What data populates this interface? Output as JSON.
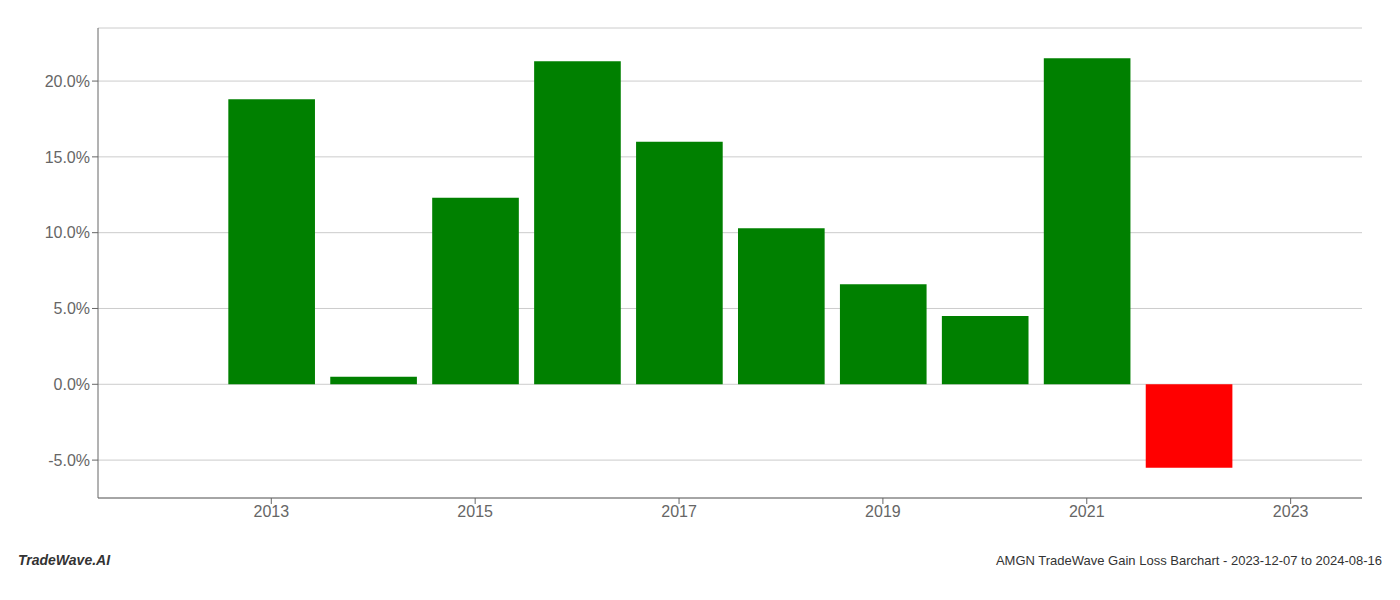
{
  "chart_data": {
    "type": "bar",
    "x": [
      2013,
      2014,
      2015,
      2016,
      2017,
      2018,
      2019,
      2020,
      2021,
      2022
    ],
    "values": [
      0.188,
      0.005,
      0.123,
      0.213,
      0.16,
      0.103,
      0.066,
      0.045,
      0.215,
      -0.055
    ],
    "colors": [
      "#008000",
      "#008000",
      "#008000",
      "#008000",
      "#008000",
      "#008000",
      "#008000",
      "#008000",
      "#008000",
      "#ff0000"
    ],
    "xlim": [
      2011.3,
      2023.7
    ],
    "ylim": [
      -0.075,
      0.235
    ],
    "xticks": [
      2013,
      2015,
      2017,
      2019,
      2021,
      2023
    ],
    "yticks": [
      {
        "value": -0.05,
        "label": "-5.0%"
      },
      {
        "value": 0.0,
        "label": "0.0%"
      },
      {
        "value": 0.05,
        "label": "5.0%"
      },
      {
        "value": 0.1,
        "label": "10.0%"
      },
      {
        "value": 0.15,
        "label": "15.0%"
      },
      {
        "value": 0.2,
        "label": "20.0%"
      }
    ],
    "grid": true,
    "annotations": [
      "TradeWave.AI",
      "AMGN TradeWave Gain Loss Barchart - 2023-12-07 to 2024-08-16"
    ]
  }
}
